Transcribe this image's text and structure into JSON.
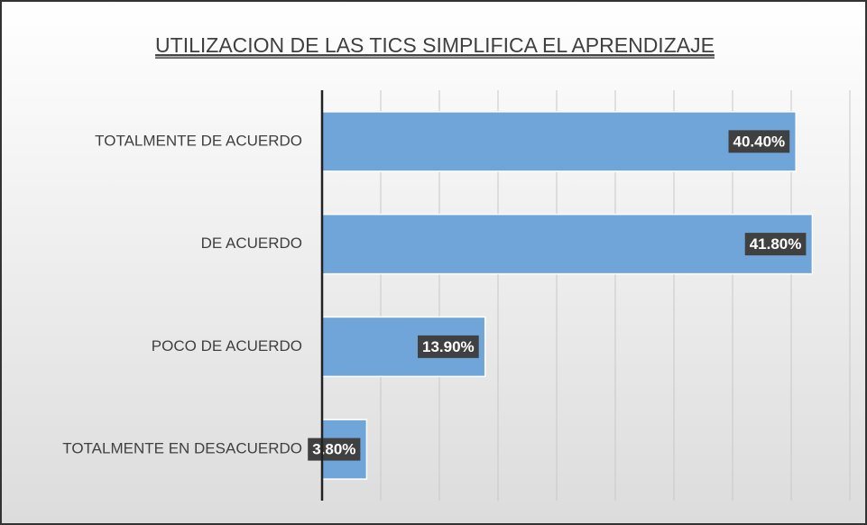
{
  "chart_data": {
    "type": "bar",
    "orientation": "horizontal",
    "title": "UTILIZACION DE LAS TICS SIMPLIFICA EL APRENDIZAJE",
    "categories": [
      "TOTALMENTE DE ACUERDO",
      "DE ACUERDO",
      "POCO DE ACUERDO",
      "TOTALMENTE EN DESACUERDO"
    ],
    "values": [
      40.4,
      41.8,
      13.9,
      3.8
    ],
    "value_labels": [
      "40.40%",
      "41.80%",
      "13.90%",
      "3.80%"
    ],
    "color": "#6fa5d8",
    "xlim": [
      0,
      45
    ],
    "xticks": [
      0,
      5,
      10,
      15,
      20,
      25,
      30,
      35,
      40,
      45
    ],
    "grid": true
  }
}
